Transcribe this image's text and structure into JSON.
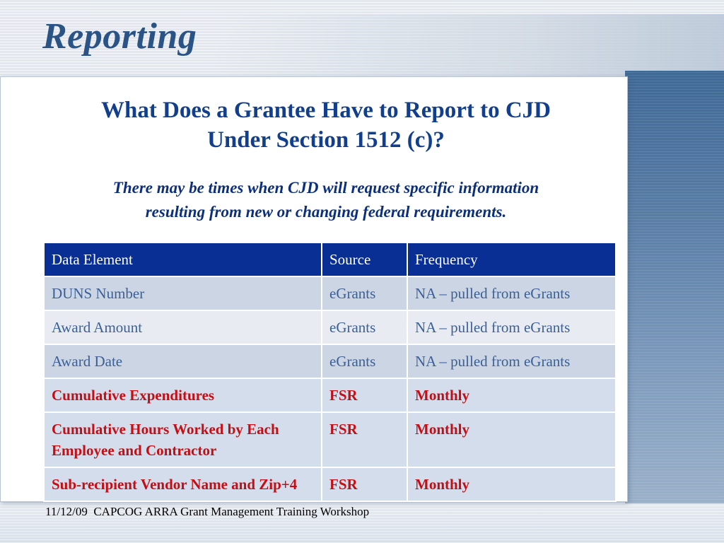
{
  "slide": {
    "title": "Reporting",
    "heading_lines": [
      "What Does a Grantee Have to Report to CJD",
      "Under Section 1512 (c)?"
    ],
    "subtitle_lines": [
      "There may be times when CJD will request specific information",
      "resulting from new or changing federal requirements."
    ],
    "table": {
      "headers": [
        "Data Element",
        "Source",
        "Frequency"
      ],
      "rows": [
        {
          "data_element": "DUNS Number",
          "source": "eGrants",
          "frequency": "NA – pulled from eGrants"
        },
        {
          "data_element": "Award Amount",
          "source": "eGrants",
          "frequency": "NA – pulled from eGrants"
        },
        {
          "data_element": "Award Date",
          "source": "eGrants",
          "frequency": "NA – pulled from eGrants"
        },
        {
          "data_element": "Cumulative Expenditures",
          "source": "FSR",
          "frequency": "Monthly"
        },
        {
          "data_element": "Cumulative Hours Worked by Each Employee and Contractor",
          "source": "FSR",
          "frequency": "Monthly"
        },
        {
          "data_element": "Sub-recipient Vendor Name and Zip+4",
          "source": "FSR",
          "frequency": "Monthly"
        }
      ]
    },
    "footer": {
      "date": "11/12/09",
      "text": "CAPCOG ARRA Grant Management Training Workshop"
    }
  },
  "colors": {
    "title": "#2b5486",
    "heading": "#123f8d",
    "table_header_bg": "#0a2f94",
    "highlight_text": "#c50d13",
    "plain_text": "#3b5f96"
  }
}
